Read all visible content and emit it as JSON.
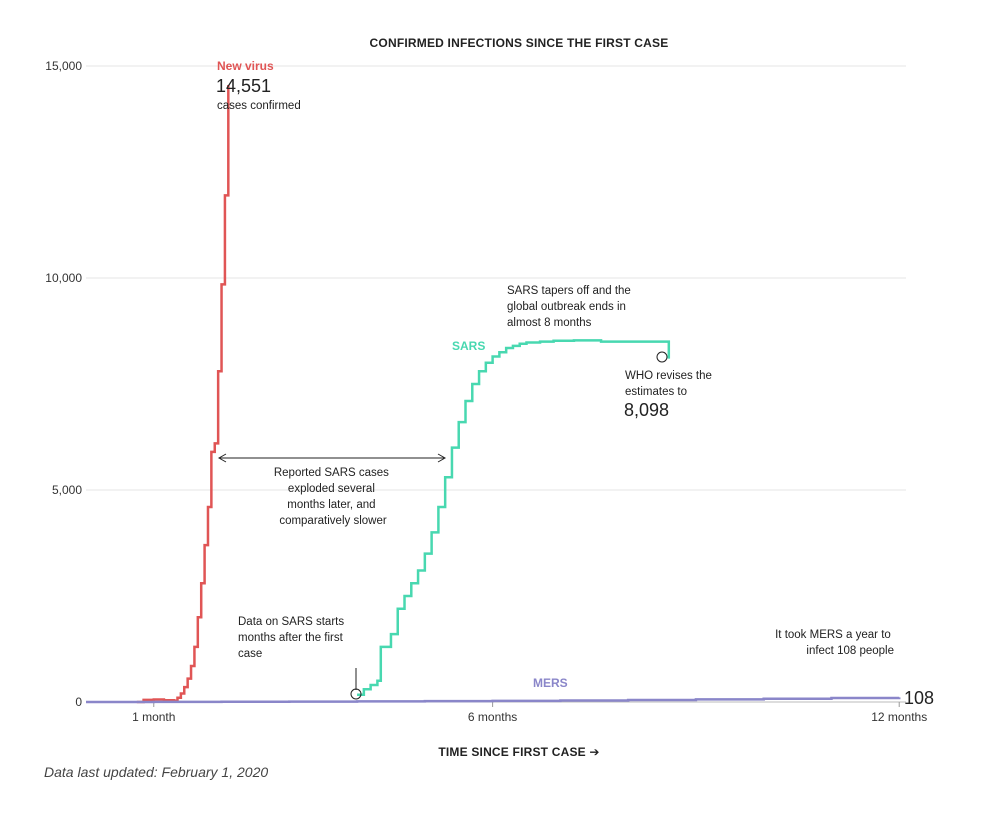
{
  "chart_data": {
    "type": "line",
    "title": "CONFIRMED INFECTIONS SINCE THE FIRST CASE",
    "xlabel": "TIME SINCE FIRST CASE ➔",
    "ylim": [
      0,
      15000
    ],
    "xlim_months": [
      0,
      12.1
    ],
    "y_ticks": [
      {
        "value": 0,
        "label": "0"
      },
      {
        "value": 5000,
        "label": "5,000"
      },
      {
        "value": 10000,
        "label": "10,000"
      },
      {
        "value": 15000,
        "label": "15,000"
      }
    ],
    "x_ticks": [
      {
        "value": 1,
        "label": "1 month"
      },
      {
        "value": 6,
        "label": "6 months"
      },
      {
        "value": 12,
        "label": "12 months"
      }
    ],
    "series": [
      {
        "name": "New virus",
        "color": "#e05555",
        "x": [
          0.75,
          0.85,
          1.0,
          1.15,
          1.3,
          1.35,
          1.4,
          1.45,
          1.5,
          1.55,
          1.6,
          1.65,
          1.7,
          1.75,
          1.8,
          1.85,
          1.9,
          1.95,
          2.0,
          2.05,
          2.1
        ],
        "values": [
          0,
          50,
          60,
          40,
          30,
          100,
          200,
          350,
          550,
          850,
          1300,
          2000,
          2800,
          3700,
          4600,
          5900,
          6100,
          7800,
          9850,
          11950,
          14551
        ]
      },
      {
        "name": "SARS",
        "color": "#48d8b0",
        "x": [
          4.0,
          4.1,
          4.2,
          4.3,
          4.35,
          4.5,
          4.6,
          4.7,
          4.8,
          4.9,
          5.0,
          5.1,
          5.2,
          5.3,
          5.4,
          5.5,
          5.6,
          5.7,
          5.8,
          5.9,
          6.0,
          6.1,
          6.2,
          6.3,
          6.4,
          6.5,
          6.7,
          6.9,
          7.2,
          7.6,
          8.0,
          8.3,
          8.6,
          8.6
        ],
        "values": [
          170,
          300,
          400,
          500,
          1300,
          1600,
          2200,
          2500,
          2800,
          3100,
          3500,
          4000,
          4600,
          5300,
          6000,
          6600,
          7100,
          7500,
          7800,
          8000,
          8150,
          8250,
          8350,
          8400,
          8450,
          8480,
          8500,
          8520,
          8530,
          8500,
          8500,
          8500,
          8500,
          8098
        ]
      },
      {
        "name": "MERS",
        "color": "#8a86c9",
        "x": [
          0,
          1,
          2,
          3,
          4,
          5,
          6,
          7,
          8,
          9,
          10,
          11,
          12
        ],
        "values": [
          0,
          2,
          5,
          10,
          15,
          20,
          28,
          36,
          48,
          62,
          78,
          95,
          108
        ]
      }
    ],
    "labels": {
      "new_virus_name": "New virus",
      "new_virus_value": "14,551",
      "new_virus_sub": "cases confirmed",
      "sars_name": "SARS",
      "mers_name": "MERS",
      "mers_value": "108"
    },
    "annotations": {
      "sars_tapers": [
        "SARS tapers off and the",
        "global outbreak ends in",
        "almost 8 months"
      ],
      "who_revises": [
        "WHO revises the",
        "estimates to"
      ],
      "who_value": "8,098",
      "sars_exploded": [
        "Reported SARS cases",
        "exploded several",
        "months later, and",
        "comparatively slower"
      ],
      "sars_data_starts": [
        "Data on SARS starts",
        "months after the first",
        "case"
      ],
      "mers_year": [
        "It took MERS a year to",
        "infect 108 people"
      ]
    }
  },
  "footer": "Data last updated: February 1, 2020"
}
